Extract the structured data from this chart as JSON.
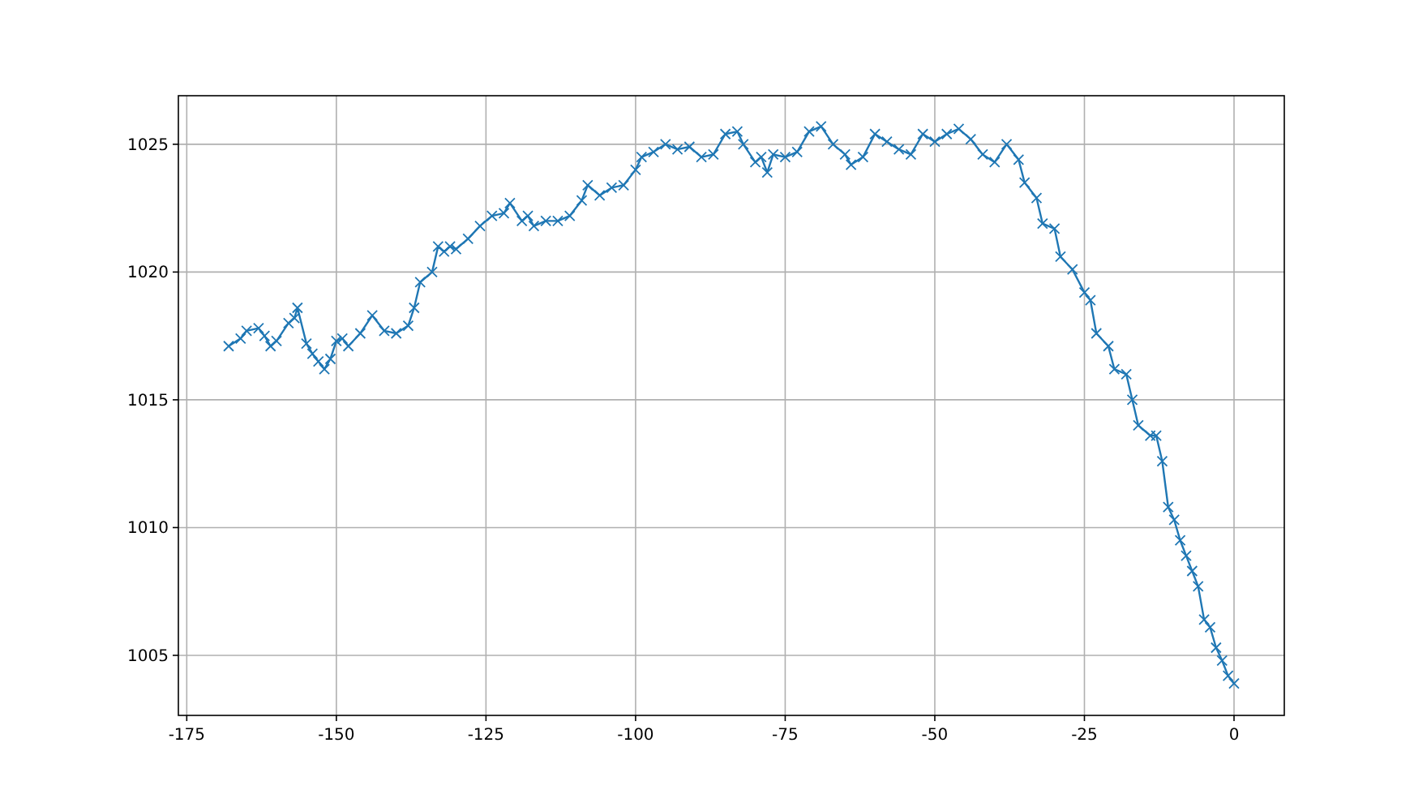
{
  "chart_data": {
    "type": "line",
    "marker": "cross",
    "grid": true,
    "xlim": [
      -176.4,
      8.4
    ],
    "ylim": [
      1002.65,
      1026.9
    ],
    "xticks": [
      -175,
      -150,
      -125,
      -100,
      -75,
      -50,
      -25,
      0
    ],
    "yticks": [
      1005,
      1010,
      1015,
      1020,
      1025
    ],
    "series": [
      {
        "color": "#1f77b4",
        "x": [
          -168,
          -166,
          -165,
          -163,
          -162,
          -161,
          -160,
          -158,
          -157,
          -156.5,
          -155,
          -154,
          -153,
          -152,
          -151,
          -150,
          -149,
          -148,
          -146,
          -144,
          -142,
          -140,
          -138,
          -137,
          -136,
          -134,
          -133,
          -132,
          -131,
          -130,
          -128,
          -126,
          -124,
          -122,
          -121,
          -119,
          -118,
          -117,
          -115,
          -113,
          -111,
          -109,
          -108,
          -106,
          -104,
          -102,
          -100,
          -99,
          -97,
          -95,
          -93,
          -91,
          -89,
          -87,
          -85,
          -83,
          -82,
          -80,
          -79,
          -78,
          -77,
          -75,
          -73,
          -71,
          -69,
          -67,
          -65,
          -64,
          -62,
          -60,
          -58,
          -56,
          -54,
          -52,
          -50,
          -48,
          -46,
          -44,
          -42,
          -40,
          -38,
          -36,
          -35,
          -33,
          -32,
          -30,
          -29,
          -27,
          -25,
          -24,
          -23,
          -21,
          -20,
          -18,
          -17,
          -16,
          -14,
          -13,
          -12,
          -11,
          -10,
          -9,
          -8,
          -7,
          -6,
          -5,
          -4,
          -3,
          -2,
          -1,
          0
        ],
        "values": [
          1017.1,
          1017.4,
          1017.7,
          1017.8,
          1017.5,
          1017.1,
          1017.3,
          1018.0,
          1018.2,
          1018.6,
          1017.2,
          1016.8,
          1016.5,
          1016.2,
          1016.6,
          1017.3,
          1017.4,
          1017.1,
          1017.6,
          1018.3,
          1017.7,
          1017.6,
          1017.9,
          1018.6,
          1019.6,
          1020.0,
          1021.0,
          1020.8,
          1021.0,
          1020.9,
          1021.3,
          1021.8,
          1022.2,
          1022.3,
          1022.7,
          1022.0,
          1022.2,
          1021.8,
          1022.0,
          1022.0,
          1022.2,
          1022.8,
          1023.4,
          1023.0,
          1023.3,
          1023.4,
          1024.0,
          1024.5,
          1024.7,
          1025.0,
          1024.8,
          1024.9,
          1024.5,
          1024.6,
          1025.4,
          1025.5,
          1025.0,
          1024.3,
          1024.5,
          1023.9,
          1024.6,
          1024.5,
          1024.7,
          1025.5,
          1025.7,
          1025.0,
          1024.6,
          1024.2,
          1024.5,
          1025.4,
          1025.1,
          1024.8,
          1024.6,
          1025.4,
          1025.1,
          1025.4,
          1025.6,
          1025.2,
          1024.6,
          1024.3,
          1025.0,
          1024.4,
          1023.5,
          1022.9,
          1021.9,
          1021.7,
          1020.6,
          1020.1,
          1019.2,
          1018.9,
          1017.6,
          1017.1,
          1016.2,
          1016.0,
          1015.0,
          1014.0,
          1013.6,
          1013.6,
          1012.6,
          1010.8,
          1010.3,
          1009.5,
          1008.9,
          1008.3,
          1007.7,
          1006.4,
          1006.1,
          1005.3,
          1004.8,
          1004.2,
          1003.9
        ]
      }
    ]
  }
}
